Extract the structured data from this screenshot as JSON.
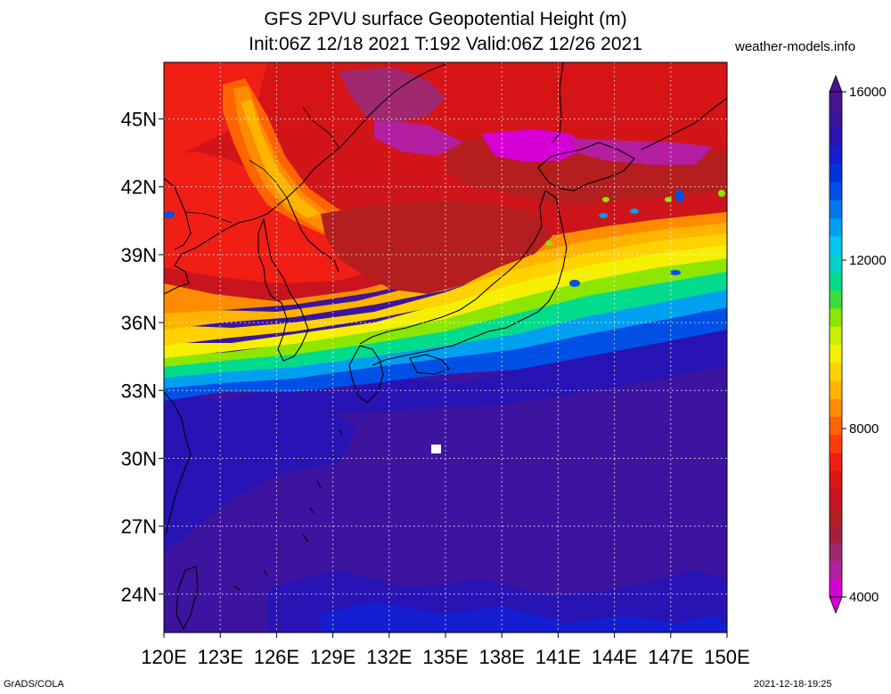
{
  "title": {
    "line1": "GFS 2PVU surface Geopotential Height (m)",
    "line2": "Init:06Z 12/18 2021 T:192 Valid:06Z 12/26 2021"
  },
  "site": "weather-models.info",
  "map": {
    "lon_range": [
      120,
      150
    ],
    "lat_range": [
      22.3,
      47.5
    ],
    "lon_ticks": [
      "120E",
      "123E",
      "126E",
      "129E",
      "132E",
      "135E",
      "138E",
      "141E",
      "144E",
      "147E",
      "150E"
    ],
    "lat_ticks": [
      {
        "lat": 45,
        "label": "45N"
      },
      {
        "lat": 42,
        "label": "42N"
      },
      {
        "lat": 39,
        "label": "39N"
      },
      {
        "lat": 36,
        "label": "36N"
      },
      {
        "lat": 33,
        "label": "33N"
      },
      {
        "lat": 30,
        "label": "30N"
      },
      {
        "lat": 27,
        "label": "27N"
      },
      {
        "lat": 24,
        "label": "24N"
      }
    ],
    "gridlines": true
  },
  "colorbar": {
    "labels": [
      {
        "value": 4000,
        "text": "4000"
      },
      {
        "value": 8000,
        "text": "8000"
      },
      {
        "value": 12000,
        "text": "12000"
      },
      {
        "value": 16000,
        "text": "16000"
      }
    ],
    "colors": [
      "#d600d6",
      "#b41ea0",
      "#a0286e",
      "#a51e3c",
      "#b41e1e",
      "#c8141e",
      "#dc1414",
      "#f01e14",
      "#ff3c0a",
      "#ff6400",
      "#ff8c00",
      "#ffb400",
      "#ffd200",
      "#f5f000",
      "#c8f000",
      "#8ce600",
      "#3cdc3c",
      "#00dc8c",
      "#00d2c8",
      "#00c8f0",
      "#00a0f0",
      "#0078f0",
      "#0050e6",
      "#0032dc",
      "#141ed2",
      "#2814b4",
      "#3c14a0",
      "#46148c"
    ]
  },
  "footer": {
    "left": "GrADS/COLA",
    "right": "2021-12-18-19:25"
  }
}
